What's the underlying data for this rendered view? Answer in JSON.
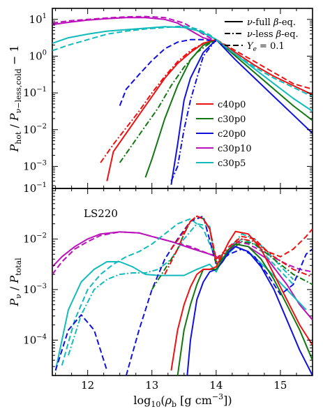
{
  "chart_data": [
    {
      "type": "line",
      "panel": "top",
      "ylabel": "P_hot / P_ν−less,cold − 1",
      "xlim": [
        11.45,
        15.5
      ],
      "ylim_log10": [
        -3.6,
        1.3
      ],
      "yscale": "log",
      "y_tick_labels": [
        "10^-3",
        "10^-2",
        "10^-1",
        "10^0",
        "10^1"
      ],
      "style_legend": [
        {
          "label": "ν-full β-eq.",
          "dash": "solid"
        },
        {
          "label": "ν-less β-eq.",
          "dash": "dashdot"
        },
        {
          "label": "Y_e = 0.1",
          "dash": "dashed"
        }
      ],
      "model_legend": [
        {
          "label": "c40p0",
          "color": "#ee1111"
        },
        {
          "label": "c30p0",
          "color": "#117711"
        },
        {
          "label": "c20p0",
          "color": "#1111dd"
        },
        {
          "label": "c30p10",
          "color": "#bb11bb"
        },
        {
          "label": "c30p5",
          "color": "#11bbbb"
        }
      ],
      "series": [
        {
          "model": "c30p10",
          "style": "solid",
          "color": "#bb11bb",
          "x": [
            11.45,
            11.7,
            12.0,
            12.3,
            12.6,
            12.9,
            13.2,
            13.4,
            13.6,
            13.8,
            14.0
          ],
          "log10y": [
            0.86,
            0.92,
            0.98,
            1.02,
            1.05,
            1.05,
            1.0,
            0.9,
            0.7,
            0.5,
            0.4
          ]
        },
        {
          "model": "c30p10",
          "style": "dashed",
          "color": "#bb11bb",
          "x": [
            11.45,
            11.7,
            12.0,
            12.3,
            12.6,
            12.9,
            13.2,
            13.5,
            13.8,
            14.0
          ],
          "log10y": [
            0.9,
            0.96,
            1.0,
            1.04,
            1.07,
            1.08,
            1.05,
            0.9,
            0.6,
            0.4
          ]
        },
        {
          "model": "c30p5",
          "style": "solid",
          "color": "#11bbbb",
          "x": [
            11.45,
            11.7,
            12.0,
            12.3,
            12.6,
            12.9,
            13.2,
            13.5,
            13.7,
            13.9,
            14.0
          ],
          "log10y": [
            0.35,
            0.5,
            0.6,
            0.68,
            0.72,
            0.76,
            0.8,
            0.78,
            0.7,
            0.55,
            0.45
          ]
        },
        {
          "model": "c30p5",
          "style": "dashed",
          "color": "#11bbbb",
          "x": [
            11.45,
            11.7,
            12.0,
            12.3,
            12.6,
            12.9,
            13.2,
            13.5,
            13.7,
            13.9,
            14.0
          ],
          "log10y": [
            0.15,
            0.3,
            0.45,
            0.6,
            0.68,
            0.74,
            0.78,
            0.82,
            0.74,
            0.58,
            0.45
          ]
        },
        {
          "model": "c20p0",
          "style": "dashed",
          "color": "#1111dd",
          "x": [
            12.5,
            12.6,
            12.8,
            13.0,
            13.2,
            13.4,
            13.6,
            13.8,
            14.0
          ],
          "log10y": [
            -1.35,
            -0.9,
            -0.5,
            -0.12,
            0.2,
            0.38,
            0.45,
            0.45,
            0.4
          ]
        },
        {
          "model": "c40p0",
          "style": "solid",
          "color": "#ee1111",
          "x": [
            12.3,
            12.4,
            12.6,
            12.8,
            13.0,
            13.2,
            13.4,
            13.6,
            13.8,
            14.0
          ],
          "log10y": [
            -3.4,
            -2.6,
            -2.1,
            -1.6,
            -1.1,
            -0.6,
            -0.2,
            0.1,
            0.35,
            0.45
          ]
        },
        {
          "model": "c30p0",
          "style": "solid",
          "color": "#117711",
          "x": [
            12.9,
            13.0,
            13.2,
            13.4,
            13.6,
            13.8,
            14.0
          ],
          "log10y": [
            -3.3,
            -2.8,
            -1.7,
            -0.8,
            -0.1,
            0.3,
            0.45
          ]
        },
        {
          "model": "c20p0",
          "style": "solid",
          "color": "#1111dd",
          "x": [
            13.3,
            13.4,
            13.5,
            13.6,
            13.8,
            14.0
          ],
          "log10y": [
            -3.5,
            -2.4,
            -1.2,
            -0.6,
            0.1,
            0.45
          ]
        },
        {
          "model": "c40p0",
          "style": "dashdot",
          "color": "#ee1111",
          "x": [
            12.2,
            12.4,
            12.6,
            12.8,
            13.0,
            13.2,
            13.4,
            13.6,
            13.8,
            14.0
          ],
          "log10y": [
            -2.9,
            -2.4,
            -1.95,
            -1.5,
            -1.0,
            -0.55,
            -0.15,
            0.15,
            0.35,
            0.45
          ]
        },
        {
          "model": "c30p0",
          "style": "dashdot",
          "color": "#117711",
          "x": [
            12.5,
            12.7,
            12.9,
            13.1,
            13.3,
            13.5,
            13.7,
            13.9,
            14.0
          ],
          "log10y": [
            -2.9,
            -2.4,
            -1.9,
            -1.4,
            -0.8,
            -0.3,
            0.1,
            0.35,
            0.45
          ]
        },
        {
          "model": "c20p0",
          "style": "dashdot",
          "color": "#1111dd",
          "x": [
            13.3,
            13.4,
            13.5,
            13.6,
            13.8,
            14.0
          ],
          "log10y": [
            -3.4,
            -3.0,
            -2.0,
            -1.2,
            0.0,
            0.45
          ]
        },
        {
          "model": "c40p0",
          "style": "solid",
          "color": "#ee1111",
          "x": [
            14.0,
            14.3,
            14.6,
            14.9,
            15.2,
            15.5
          ],
          "log10y": [
            0.45,
            0.1,
            -0.25,
            -0.55,
            -0.8,
            -1.05
          ]
        },
        {
          "model": "c40p0",
          "style": "dashed",
          "color": "#ee1111",
          "x": [
            14.0,
            14.3,
            14.6,
            14.9,
            15.2,
            15.5
          ],
          "log10y": [
            0.45,
            0.15,
            -0.15,
            -0.45,
            -0.75,
            -0.9
          ]
        },
        {
          "model": "c30p5",
          "style": "solid",
          "color": "#11bbbb",
          "x": [
            14.0,
            14.3,
            14.6,
            14.9,
            15.2,
            15.5
          ],
          "log10y": [
            0.45,
            0.05,
            -0.35,
            -0.75,
            -1.15,
            -1.5
          ]
        },
        {
          "model": "c30p0",
          "style": "solid",
          "color": "#117711",
          "x": [
            14.0,
            14.3,
            14.6,
            14.9,
            15.2,
            15.5
          ],
          "log10y": [
            0.45,
            0.0,
            -0.45,
            -0.9,
            -1.35,
            -1.75
          ]
        },
        {
          "model": "c20p0",
          "style": "solid",
          "color": "#1111dd",
          "x": [
            14.0,
            14.3,
            14.6,
            14.9,
            15.2,
            15.5
          ],
          "log10y": [
            0.45,
            -0.1,
            -0.6,
            -1.1,
            -1.6,
            -2.1
          ]
        },
        {
          "model": "c30p5",
          "style": "dashed",
          "color": "#11bbbb",
          "x": [
            14.0,
            14.3,
            14.6,
            14.9,
            15.2,
            15.5
          ],
          "log10y": [
            0.45,
            0.05,
            -0.3,
            -0.6,
            -0.85,
            -1.1
          ]
        }
      ]
    },
    {
      "type": "line",
      "panel": "bottom",
      "annotation": "LS220",
      "xlabel": "log10(ρ_b [g cm^-3])",
      "ylabel": "P_ν / P_total",
      "xlim": [
        11.45,
        15.5
      ],
      "ylim_log10": [
        -4.7,
        -1.0
      ],
      "yscale": "log",
      "x_tick_labels": [
        "12",
        "13",
        "14",
        "15"
      ],
      "y_tick_labels": [
        "10^-4",
        "10^-3",
        "10^-2",
        "10^-1"
      ],
      "series": [
        {
          "model": "c30p10",
          "style": "solid",
          "color": "#bb11bb",
          "x": [
            11.45,
            11.6,
            11.8,
            12.0,
            12.2,
            12.5,
            12.8,
            13.0,
            13.3,
            13.6,
            13.9,
            14.1,
            14.3,
            14.5,
            14.8,
            15.1,
            15.3,
            15.5
          ],
          "log10y": [
            -2.55,
            -2.35,
            -2.15,
            -2.0,
            -1.9,
            -1.86,
            -1.88,
            -1.95,
            -2.05,
            -2.18,
            -2.3,
            -2.4,
            -2.1,
            -2.15,
            -2.4,
            -2.9,
            -3.3,
            -3.6
          ]
        },
        {
          "model": "c30p10",
          "style": "dashed",
          "color": "#bb11bb",
          "x": [
            11.45,
            11.6,
            11.8,
            12.0,
            12.2,
            12.5,
            12.8,
            13.0,
            13.3,
            13.6,
            13.9,
            14.1,
            14.3,
            14.5,
            14.8,
            15.1,
            15.3,
            15.5
          ],
          "log10y": [
            -2.7,
            -2.45,
            -2.2,
            -2.05,
            -1.93,
            -1.86,
            -1.88,
            -1.95,
            -2.05,
            -2.15,
            -2.3,
            -2.35,
            -2.05,
            -2.1,
            -2.3,
            -2.5,
            -2.6,
            -2.65
          ]
        },
        {
          "model": "c30p5",
          "style": "solid",
          "color": "#11bbbb",
          "x": [
            11.5,
            11.7,
            11.9,
            12.1,
            12.3,
            12.5,
            12.7,
            12.9,
            13.1,
            13.3,
            13.5,
            13.7,
            13.9,
            14.0,
            14.1,
            14.3,
            14.5,
            14.8,
            15.1,
            15.4
          ],
          "log10y": [
            -4.6,
            -3.4,
            -2.85,
            -2.6,
            -2.45,
            -2.45,
            -2.55,
            -2.7,
            -2.72,
            -2.72,
            -2.72,
            -2.6,
            -2.5,
            -2.65,
            -2.4,
            -2.15,
            -2.25,
            -2.6,
            -3.0,
            -3.4
          ]
        },
        {
          "model": "c30p5",
          "style": "dashed",
          "color": "#11bbbb",
          "x": [
            11.6,
            11.8,
            12.0,
            12.2,
            12.4,
            12.6,
            12.8,
            13.0,
            13.2,
            13.4,
            13.6,
            13.8,
            14.0,
            14.2,
            14.4,
            14.6,
            14.9,
            15.2
          ],
          "log10y": [
            -4.5,
            -3.6,
            -3.0,
            -2.7,
            -2.5,
            -2.35,
            -2.25,
            -2.1,
            -1.9,
            -1.7,
            -1.6,
            -1.8,
            -2.4,
            -2.2,
            -2.0,
            -2.1,
            -2.5,
            -2.9
          ]
        },
        {
          "model": "c30p5",
          "style": "dashdot",
          "color": "#11bbbb",
          "x": [
            11.7,
            11.9,
            12.1,
            12.3,
            12.5,
            12.7,
            12.9,
            13.1,
            13.3,
            13.5,
            13.7,
            13.9,
            14.0,
            14.2,
            14.4,
            14.6,
            14.9,
            15.2
          ],
          "log10y": [
            -4.3,
            -3.5,
            -3.0,
            -2.8,
            -2.7,
            -2.67,
            -2.67,
            -2.6,
            -2.4,
            -2.0,
            -1.7,
            -1.75,
            -2.5,
            -2.2,
            -1.9,
            -2.0,
            -2.4,
            -2.8
          ]
        },
        {
          "model": "c20p0",
          "style": "dashed",
          "color": "#1111dd",
          "x": [
            11.5,
            11.7,
            11.9,
            12.1,
            12.3
          ],
          "log10y": [
            -4.6,
            -3.8,
            -3.5,
            -3.8,
            -4.6
          ]
        },
        {
          "model": "c20p0",
          "style": "dashed",
          "color": "#1111dd",
          "x": [
            12.6,
            12.8,
            13.0,
            13.2,
            13.4,
            13.6,
            13.8,
            14.0,
            14.2,
            14.4,
            14.6,
            14.8,
            15.0,
            15.2,
            15.4,
            15.5
          ],
          "log10y": [
            -4.7,
            -3.8,
            -3.0,
            -2.4,
            -2.0,
            -1.65,
            -1.55,
            -2.5,
            -2.3,
            -2.2,
            -2.35,
            -2.7,
            -3.1,
            -2.9,
            -2.3,
            -2.2
          ]
        },
        {
          "model": "c30p0",
          "style": "dashdot",
          "color": "#117711",
          "x": [
            13.0,
            13.2,
            13.4,
            13.5,
            13.6,
            13.7,
            13.8,
            13.9,
            14.0,
            14.2,
            14.4,
            14.6,
            14.9,
            15.2,
            15.5
          ],
          "log10y": [
            -3.0,
            -2.6,
            -2.2,
            -1.9,
            -1.65,
            -1.55,
            -1.6,
            -1.8,
            -2.5,
            -2.25,
            -2.05,
            -2.1,
            -2.4,
            -2.7,
            -2.9
          ]
        },
        {
          "model": "c40p0",
          "style": "dashdot",
          "color": "#ee1111",
          "x": [
            13.2,
            13.4,
            13.5,
            13.6,
            13.7,
            13.8,
            13.9,
            14.0,
            14.2,
            14.4,
            14.6,
            14.9,
            15.2,
            15.5
          ],
          "log10y": [
            -2.7,
            -2.2,
            -1.9,
            -1.65,
            -1.55,
            -1.6,
            -1.8,
            -2.45,
            -2.2,
            -2.0,
            -2.05,
            -2.35,
            -2.6,
            -2.75
          ]
        },
        {
          "model": "c40p0",
          "style": "dashed",
          "color": "#ee1111",
          "x": [
            13.3,
            13.5,
            13.6,
            13.7,
            13.8,
            13.9,
            14.0,
            14.2,
            14.4,
            14.6,
            14.8,
            15.0,
            15.2,
            15.4,
            15.5
          ],
          "log10y": [
            -2.2,
            -1.85,
            -1.65,
            -1.55,
            -1.6,
            -1.8,
            -2.4,
            -2.15,
            -1.95,
            -2.0,
            -2.25,
            -2.35,
            -2.2,
            -1.95,
            -1.8
          ]
        },
        {
          "model": "c20p0",
          "style": "solid",
          "color": "#1111dd",
          "x": [
            13.55,
            13.6,
            13.7,
            13.8,
            13.9,
            14.0,
            14.1,
            14.2,
            14.3,
            14.5,
            14.7,
            14.9,
            15.1,
            15.3,
            15.5
          ],
          "log10y": [
            -4.7,
            -4.0,
            -3.2,
            -2.85,
            -2.65,
            -2.6,
            -2.45,
            -2.25,
            -2.15,
            -2.25,
            -2.55,
            -3.0,
            -3.6,
            -4.2,
            -4.7
          ]
        },
        {
          "model": "c30p0",
          "style": "solid",
          "color": "#117711",
          "x": [
            13.4,
            13.5,
            13.6,
            13.7,
            13.8,
            13.9,
            14.0,
            14.1,
            14.2,
            14.3,
            14.5,
            14.7,
            14.9,
            15.1,
            15.3,
            15.5
          ],
          "log10y": [
            -4.7,
            -3.8,
            -3.3,
            -2.9,
            -2.6,
            -2.6,
            -2.6,
            -2.4,
            -2.2,
            -2.1,
            -2.15,
            -2.4,
            -2.8,
            -3.3,
            -3.8,
            -4.4
          ]
        },
        {
          "model": "c40p0",
          "style": "solid",
          "color": "#ee1111",
          "x": [
            13.3,
            13.4,
            13.5,
            13.6,
            13.7,
            13.8,
            13.9,
            14.0,
            14.1,
            14.2,
            14.3,
            14.5,
            14.7,
            14.9,
            15.1,
            15.3,
            15.5
          ],
          "log10y": [
            -4.6,
            -3.8,
            -3.3,
            -2.95,
            -2.7,
            -2.6,
            -2.6,
            -2.55,
            -2.3,
            -2.05,
            -1.85,
            -1.9,
            -2.2,
            -2.7,
            -3.2,
            -3.7,
            -4.1
          ]
        }
      ]
    }
  ]
}
